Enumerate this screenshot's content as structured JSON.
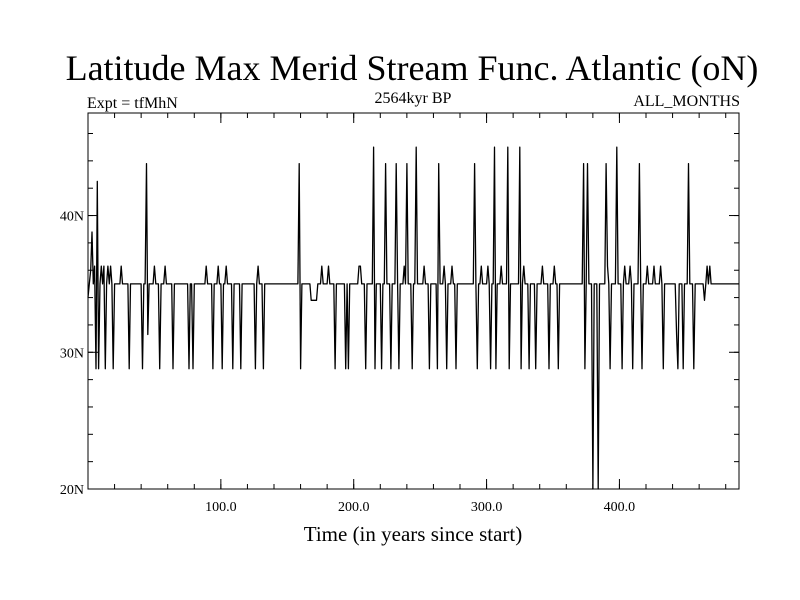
{
  "chart_data": {
    "type": "line",
    "title": "Latitude Max Merid Stream Func. Atlantic (oN)",
    "subtitle_left": "Expt = tfMhN",
    "subtitle_center": "2564kyr BP",
    "subtitle_right": "ALL_MONTHS",
    "xlabel": "Time (in years since start)",
    "ylabel": "",
    "xlim": [
      0,
      490
    ],
    "ylim": [
      20,
      47.5
    ],
    "x_ticks": [
      100,
      200,
      300,
      400
    ],
    "x_tick_labels": [
      "100.0",
      "200.0",
      "300.0",
      "400.0"
    ],
    "y_ticks": [
      20,
      30,
      40
    ],
    "y_tick_labels": [
      "20N",
      "30N",
      "40N"
    ],
    "x_minor_step": 20,
    "y_minor_step": 2,
    "grid": false,
    "baseline": 35,
    "series": [
      {
        "color": "#000000",
        "points": [
          [
            0,
            34
          ],
          [
            1,
            35
          ],
          [
            2,
            36
          ],
          [
            3,
            38.8
          ],
          [
            4,
            35
          ],
          [
            5,
            36.3
          ],
          [
            6,
            28.8
          ],
          [
            7,
            42.5
          ],
          [
            8,
            28.8
          ],
          [
            9,
            35
          ],
          [
            10,
            36.3
          ],
          [
            11,
            35
          ],
          [
            12,
            36.3
          ],
          [
            13,
            28.8
          ],
          [
            14,
            35
          ],
          [
            15,
            36.3
          ],
          [
            16,
            35
          ],
          [
            17,
            36.3
          ],
          [
            18,
            35
          ],
          [
            19,
            28.8
          ],
          [
            20,
            35
          ],
          [
            24,
            35
          ],
          [
            25,
            36.3
          ],
          [
            26,
            35
          ],
          [
            30,
            35
          ],
          [
            31,
            28.8
          ],
          [
            32,
            35
          ],
          [
            40,
            35
          ],
          [
            41,
            28.8
          ],
          [
            42,
            35
          ],
          [
            43,
            35
          ],
          [
            44,
            43.8
          ],
          [
            45,
            31.3
          ],
          [
            46,
            35
          ],
          [
            49,
            35
          ],
          [
            50,
            36.3
          ],
          [
            51,
            35
          ],
          [
            53,
            35
          ],
          [
            54,
            28.8
          ],
          [
            55,
            35
          ],
          [
            57,
            35
          ],
          [
            58,
            36.3
          ],
          [
            59,
            35
          ],
          [
            63,
            35
          ],
          [
            64,
            28.8
          ],
          [
            65,
            35
          ],
          [
            75,
            35
          ],
          [
            76,
            28.8
          ],
          [
            77,
            35
          ],
          [
            78,
            35
          ],
          [
            79,
            28.8
          ],
          [
            80,
            35
          ],
          [
            88,
            35
          ],
          [
            89,
            36.3
          ],
          [
            90,
            35
          ],
          [
            93,
            35
          ],
          [
            94,
            28.8
          ],
          [
            95,
            35
          ],
          [
            97,
            35
          ],
          [
            98,
            36.3
          ],
          [
            99,
            35
          ],
          [
            100,
            35
          ],
          [
            101,
            28.8
          ],
          [
            102,
            35
          ],
          [
            103,
            35
          ],
          [
            104,
            36.3
          ],
          [
            105,
            35
          ],
          [
            108,
            35
          ],
          [
            109,
            28.8
          ],
          [
            110,
            35
          ],
          [
            114,
            35
          ],
          [
            115,
            28.8
          ],
          [
            116,
            35
          ],
          [
            125,
            35
          ],
          [
            126,
            28.8
          ],
          [
            127,
            35
          ],
          [
            128,
            36.3
          ],
          [
            129,
            35
          ],
          [
            131,
            35
          ],
          [
            132,
            28.8
          ],
          [
            133,
            35
          ],
          [
            158,
            35
          ],
          [
            159,
            43.8
          ],
          [
            160,
            28.8
          ],
          [
            161,
            35
          ],
          [
            167,
            35
          ],
          [
            168,
            33.8
          ],
          [
            172,
            33.8
          ],
          [
            173,
            35
          ],
          [
            175,
            35
          ],
          [
            176,
            36.3
          ],
          [
            177,
            35
          ],
          [
            180,
            35
          ],
          [
            181,
            36.3
          ],
          [
            182,
            35
          ],
          [
            185,
            35
          ],
          [
            186,
            28.8
          ],
          [
            187,
            35
          ],
          [
            193,
            35
          ],
          [
            194,
            28.8
          ],
          [
            195,
            35
          ],
          [
            196,
            28.8
          ],
          [
            197,
            35
          ],
          [
            203,
            35
          ],
          [
            204,
            36.3
          ],
          [
            205,
            36.3
          ],
          [
            206,
            35
          ],
          [
            208,
            35
          ],
          [
            209,
            28.8
          ],
          [
            210,
            35
          ],
          [
            214,
            35
          ],
          [
            215,
            45
          ],
          [
            216,
            28.8
          ],
          [
            217,
            35
          ],
          [
            220,
            35
          ],
          [
            221,
            28.8
          ],
          [
            222,
            35
          ],
          [
            223,
            35
          ],
          [
            224,
            43.8
          ],
          [
            225,
            35
          ],
          [
            227,
            35
          ],
          [
            228,
            28.8
          ],
          [
            229,
            35
          ],
          [
            231,
            35
          ],
          [
            232,
            43.8
          ],
          [
            233,
            35
          ],
          [
            234,
            28.8
          ],
          [
            235,
            35
          ],
          [
            237,
            35
          ],
          [
            238,
            36.3
          ],
          [
            239,
            35
          ],
          [
            240,
            43.8
          ],
          [
            241,
            35
          ],
          [
            243,
            35
          ],
          [
            244,
            28.8
          ],
          [
            245,
            35
          ],
          [
            246,
            35
          ],
          [
            247,
            45
          ],
          [
            248,
            35
          ],
          [
            252,
            35
          ],
          [
            253,
            36.3
          ],
          [
            254,
            35
          ],
          [
            256,
            35
          ],
          [
            257,
            28.8
          ],
          [
            258,
            35
          ],
          [
            262,
            35
          ],
          [
            263,
            28.8
          ],
          [
            264,
            43.8
          ],
          [
            265,
            35
          ],
          [
            267,
            35
          ],
          [
            268,
            36.3
          ],
          [
            269,
            35
          ],
          [
            270,
            28.8
          ],
          [
            271,
            35
          ],
          [
            273,
            35
          ],
          [
            274,
            36.3
          ],
          [
            275,
            35
          ],
          [
            276,
            35
          ],
          [
            277,
            28.8
          ],
          [
            278,
            35
          ],
          [
            290,
            35
          ],
          [
            291,
            43.8
          ],
          [
            292,
            35
          ],
          [
            293,
            28.8
          ],
          [
            294,
            35
          ],
          [
            295,
            35
          ],
          [
            296,
            36.3
          ],
          [
            297,
            35
          ],
          [
            300,
            35
          ],
          [
            301,
            36.3
          ],
          [
            302,
            35
          ],
          [
            303,
            28.8
          ],
          [
            304,
            35
          ],
          [
            305,
            35
          ],
          [
            306,
            45
          ],
          [
            307,
            28.8
          ],
          [
            308,
            35
          ],
          [
            310,
            35
          ],
          [
            311,
            36.3
          ],
          [
            312,
            35
          ],
          [
            315,
            35
          ],
          [
            316,
            45
          ],
          [
            317,
            28.8
          ],
          [
            318,
            35
          ],
          [
            324,
            35
          ],
          [
            325,
            45
          ],
          [
            326,
            28.8
          ],
          [
            327,
            35
          ],
          [
            328,
            36.3
          ],
          [
            329,
            35
          ],
          [
            331,
            35
          ],
          [
            332,
            28.8
          ],
          [
            333,
            35
          ],
          [
            336,
            35
          ],
          [
            337,
            28.8
          ],
          [
            338,
            35
          ],
          [
            341,
            35
          ],
          [
            342,
            36.3
          ],
          [
            343,
            35
          ],
          [
            346,
            35
          ],
          [
            347,
            28.8
          ],
          [
            348,
            35
          ],
          [
            350,
            35
          ],
          [
            351,
            36.3
          ],
          [
            352,
            35
          ],
          [
            353,
            35
          ],
          [
            354,
            28.8
          ],
          [
            355,
            35
          ],
          [
            372,
            35
          ],
          [
            373,
            43.8
          ],
          [
            374,
            28.8
          ],
          [
            375,
            35
          ],
          [
            376,
            43.8
          ],
          [
            377,
            35
          ],
          [
            379,
            35
          ],
          [
            380,
            20
          ],
          [
            381,
            35
          ],
          [
            383,
            35
          ],
          [
            384,
            20
          ],
          [
            385,
            35
          ],
          [
            389,
            35
          ],
          [
            390,
            43.8
          ],
          [
            391,
            36.3
          ],
          [
            392,
            35
          ],
          [
            393,
            28.8
          ],
          [
            394,
            35
          ],
          [
            397,
            35
          ],
          [
            398,
            45
          ],
          [
            399,
            35
          ],
          [
            401,
            35
          ],
          [
            402,
            28.8
          ],
          [
            403,
            35
          ],
          [
            404,
            36.3
          ],
          [
            405,
            35
          ],
          [
            407,
            35
          ],
          [
            408,
            36.3
          ],
          [
            409,
            35
          ],
          [
            410,
            28.8
          ],
          [
            411,
            35
          ],
          [
            414,
            35
          ],
          [
            415,
            43.8
          ],
          [
            416,
            35
          ],
          [
            417,
            28.8
          ],
          [
            418,
            35
          ],
          [
            420,
            35
          ],
          [
            421,
            36.3
          ],
          [
            422,
            35
          ],
          [
            425,
            35
          ],
          [
            426,
            36.3
          ],
          [
            427,
            35
          ],
          [
            430,
            35
          ],
          [
            431,
            36.3
          ],
          [
            432,
            35
          ],
          [
            433,
            28.8
          ],
          [
            434,
            35
          ],
          [
            442,
            35
          ],
          [
            443,
            31.3
          ],
          [
            444,
            28.8
          ],
          [
            445,
            35
          ],
          [
            447,
            35
          ],
          [
            448,
            28.8
          ],
          [
            449,
            35
          ],
          [
            451,
            35
          ],
          [
            452,
            43.8
          ],
          [
            453,
            35
          ],
          [
            455,
            35
          ],
          [
            456,
            28.8
          ],
          [
            457,
            35
          ],
          [
            463,
            35
          ],
          [
            464,
            33.8
          ],
          [
            465,
            35
          ],
          [
            466,
            36.3
          ],
          [
            467,
            35
          ],
          [
            468,
            36.3
          ],
          [
            469,
            35
          ],
          [
            490,
            35
          ]
        ]
      }
    ]
  }
}
